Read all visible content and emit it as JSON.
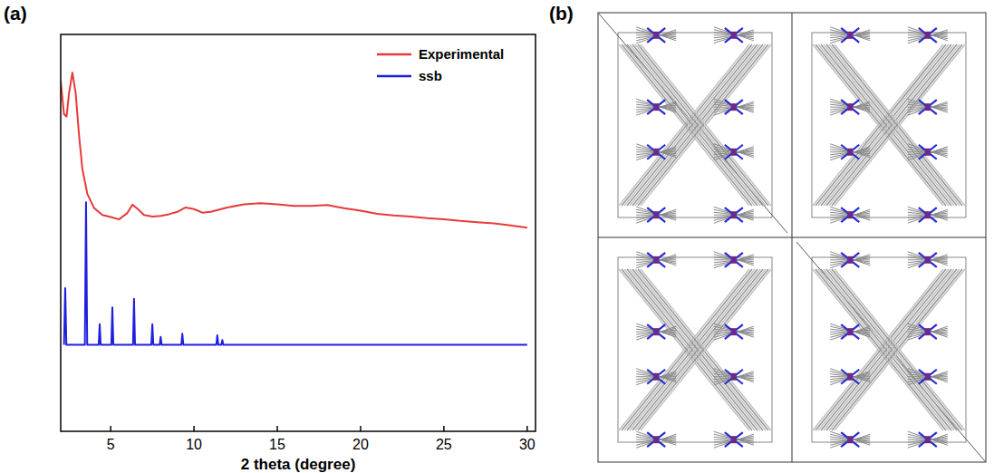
{
  "chart_data": {
    "type": "line",
    "panel_label": "(a)",
    "x_label": "2 theta (degree)",
    "xlim": [
      2,
      30.5
    ],
    "xticks": [
      5,
      10,
      15,
      20,
      25,
      30
    ],
    "ylim": [
      0,
      100
    ],
    "yticks": [],
    "tick_labels": "x",
    "grid": false,
    "legend": "upper right",
    "series": [
      {
        "name": "Experimental",
        "color": "#e8393a",
        "type": "line",
        "x": [
          2.0,
          2.2,
          2.35,
          2.5,
          2.7,
          2.9,
          3.1,
          3.3,
          3.6,
          4.0,
          4.5,
          5.0,
          5.5,
          6.0,
          6.3,
          6.6,
          7.0,
          7.5,
          8.0,
          8.5,
          9.0,
          9.5,
          10.0,
          10.5,
          11,
          12,
          13,
          14,
          15,
          16,
          17,
          18,
          19,
          20,
          21,
          22,
          23,
          24,
          25,
          26,
          27,
          28,
          29,
          30
        ],
        "values": [
          88.3,
          79.9,
          79.3,
          85.2,
          90.4,
          85.2,
          74.6,
          66.1,
          59.8,
          56.3,
          54.5,
          54.0,
          53.4,
          55.0,
          57.1,
          56.1,
          54.5,
          54.1,
          54.3,
          54.7,
          55.3,
          56.4,
          56.0,
          55.1,
          55.3,
          56.4,
          57.2,
          57.5,
          57.2,
          56.8,
          56.8,
          57.0,
          56.2,
          55.6,
          54.8,
          54.4,
          54.1,
          53.7,
          53.4,
          53.0,
          52.7,
          52.4,
          51.9,
          51.3
        ]
      },
      {
        "name": "ssb",
        "color": "#1f1fe0",
        "type": "line",
        "x": [
          2.2,
          2.27,
          2.34,
          3.45,
          3.52,
          3.59,
          4.28,
          4.34,
          4.4,
          5.04,
          5.1,
          5.16,
          6.34,
          6.4,
          6.46,
          7.44,
          7.5,
          7.56,
          7.94,
          8.0,
          8.06,
          9.24,
          9.3,
          9.36,
          11.34,
          11.4,
          11.46,
          11.64,
          11.7,
          11.76,
          30
        ],
        "values": [
          21.8,
          36.1,
          21.8,
          21.8,
          57.7,
          21.8,
          21.8,
          27.0,
          21.8,
          21.8,
          31.2,
          21.8,
          21.8,
          33.4,
          21.8,
          21.8,
          27.0,
          21.8,
          21.8,
          23.8,
          21.8,
          21.8,
          24.6,
          21.8,
          21.8,
          24.2,
          21.8,
          21.8,
          23.0,
          21.8,
          21.8
        ]
      }
    ]
  },
  "structure_panel": {
    "label": "(b)"
  }
}
